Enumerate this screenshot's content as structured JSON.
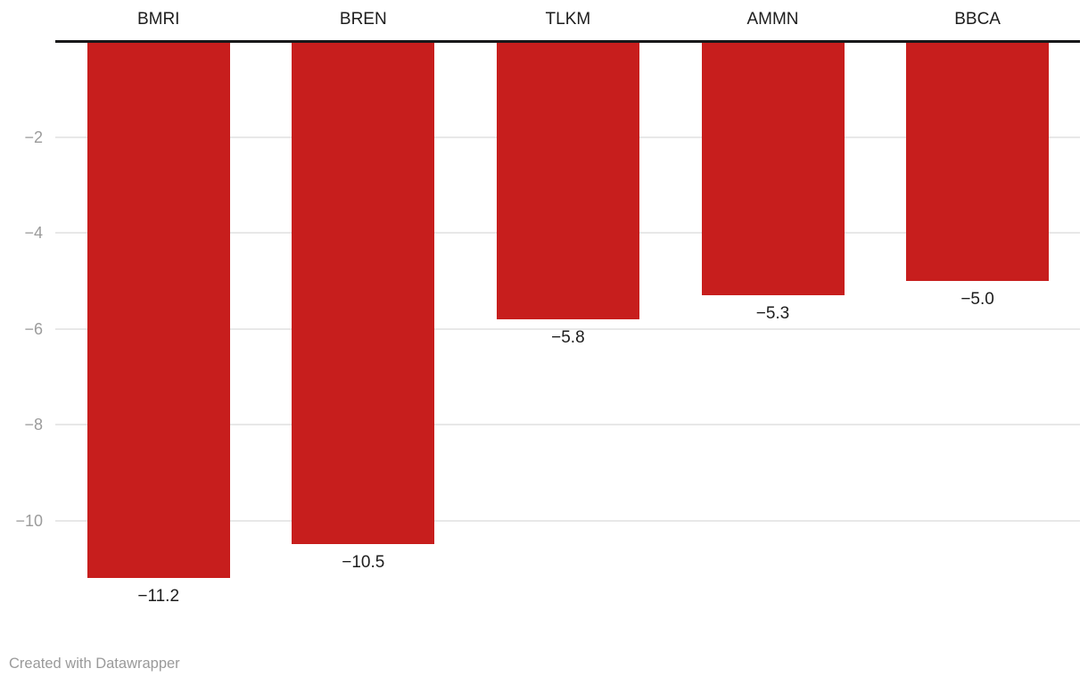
{
  "chart_data": {
    "type": "bar",
    "orientation": "vertical",
    "title": "",
    "xlabel": "",
    "ylabel": "",
    "categories": [
      "BMRI",
      "BREN",
      "TLKM",
      "AMMN",
      "BBCA"
    ],
    "values": [
      -11.2,
      -10.5,
      -5.8,
      -5.3,
      -5.0
    ],
    "value_labels": [
      "−11.2",
      "−10.5",
      "−5.8",
      "−5.3",
      "−5.0"
    ],
    "ylim": [
      -12,
      0
    ],
    "yticks": [
      -2,
      -4,
      -6,
      -8,
      -10
    ],
    "ytick_labels": [
      "−2",
      "−4",
      "−6",
      "−8",
      "−10"
    ],
    "grid": true,
    "legend": "none",
    "colors": {
      "bar": "#c71e1d",
      "baseline": "#18181a",
      "gridline": "#e8e8e8",
      "tick_label": "#9b9b9b",
      "category_label": "#1d1d1d",
      "value_label": "#1d1d1d",
      "attribution": "#9a9a9a"
    }
  },
  "footer": {
    "attribution": "Created with Datawrapper"
  }
}
